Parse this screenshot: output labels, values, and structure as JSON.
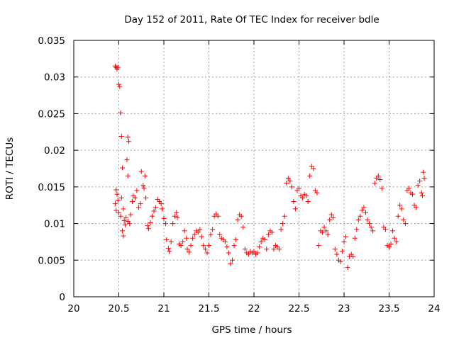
{
  "chart_data": {
    "type": "scatter",
    "title": "Day 152 of 2011, Rate Of TEC Index for receiver bdle",
    "xlabel": "GPS time / hours",
    "ylabel": "ROTI / TECUs",
    "xlim": [
      20,
      24
    ],
    "ylim": [
      0,
      0.035
    ],
    "grid": true,
    "marker": "+",
    "color": "#ff0000",
    "xticks": [
      "20",
      "20.5",
      "21",
      "21.5",
      "22",
      "22.5",
      "23",
      "23.5",
      "24"
    ],
    "yticks": [
      "0",
      "0.005",
      "0.01",
      "0.015",
      "0.02",
      "0.025",
      "0.03",
      "0.035"
    ],
    "series": [
      {
        "name": "ROTI",
        "points": [
          [
            20.46,
            0.0315
          ],
          [
            20.47,
            0.0313
          ],
          [
            20.48,
            0.0311
          ],
          [
            20.49,
            0.0313
          ],
          [
            20.5,
            0.029
          ],
          [
            20.51,
            0.0287
          ],
          [
            20.52,
            0.0251
          ],
          [
            20.53,
            0.0219
          ],
          [
            20.6,
            0.0218
          ],
          [
            20.61,
            0.0212
          ],
          [
            20.59,
            0.0187
          ],
          [
            20.54,
            0.0176
          ],
          [
            20.6,
            0.0165
          ],
          [
            20.47,
            0.0146
          ],
          [
            20.48,
            0.014
          ],
          [
            20.49,
            0.0132
          ],
          [
            20.46,
            0.0127
          ],
          [
            20.47,
            0.0118
          ],
          [
            20.5,
            0.0115
          ],
          [
            20.52,
            0.011
          ],
          [
            20.53,
            0.0135
          ],
          [
            20.55,
            0.012
          ],
          [
            20.56,
            0.0104
          ],
          [
            20.57,
            0.0098
          ],
          [
            20.58,
            0.0108
          ],
          [
            20.6,
            0.0103
          ],
          [
            20.62,
            0.01
          ],
          [
            20.63,
            0.0112
          ],
          [
            20.54,
            0.009
          ],
          [
            20.55,
            0.0083
          ],
          [
            20.65,
            0.013
          ],
          [
            20.66,
            0.0138
          ],
          [
            20.68,
            0.0135
          ],
          [
            20.7,
            0.0145
          ],
          [
            20.72,
            0.0122
          ],
          [
            20.74,
            0.0127
          ],
          [
            20.75,
            0.0171
          ],
          [
            20.77,
            0.0152
          ],
          [
            20.78,
            0.0148
          ],
          [
            20.79,
            0.0165
          ],
          [
            20.8,
            0.0135
          ],
          [
            20.82,
            0.0097
          ],
          [
            20.83,
            0.0093
          ],
          [
            20.85,
            0.0101
          ],
          [
            20.87,
            0.011
          ],
          [
            20.89,
            0.0117
          ],
          [
            20.91,
            0.0122
          ],
          [
            20.93,
            0.0133
          ],
          [
            20.95,
            0.013
          ],
          [
            20.97,
            0.0127
          ],
          [
            20.98,
            0.012
          ],
          [
            21.0,
            0.0107
          ],
          [
            21.02,
            0.01
          ],
          [
            21.03,
            0.0078
          ],
          [
            21.05,
            0.0066
          ],
          [
            21.06,
            0.0062
          ],
          [
            21.08,
            0.0075
          ],
          [
            21.1,
            0.01
          ],
          [
            21.12,
            0.011
          ],
          [
            21.14,
            0.0115
          ],
          [
            21.15,
            0.0108
          ],
          [
            21.17,
            0.0072
          ],
          [
            21.19,
            0.007
          ],
          [
            21.21,
            0.0075
          ],
          [
            21.23,
            0.009
          ],
          [
            21.25,
            0.008
          ],
          [
            21.26,
            0.0065
          ],
          [
            21.28,
            0.0061
          ],
          [
            21.3,
            0.007
          ],
          [
            21.32,
            0.008
          ],
          [
            21.34,
            0.0085
          ],
          [
            21.36,
            0.009
          ],
          [
            21.38,
            0.0088
          ],
          [
            21.4,
            0.0092
          ],
          [
            21.42,
            0.0082
          ],
          [
            21.44,
            0.007
          ],
          [
            21.46,
            0.0065
          ],
          [
            21.48,
            0.006
          ],
          [
            21.5,
            0.007
          ],
          [
            21.52,
            0.0085
          ],
          [
            21.54,
            0.0092
          ],
          [
            21.56,
            0.011
          ],
          [
            21.58,
            0.0113
          ],
          [
            21.6,
            0.011
          ],
          [
            21.62,
            0.0085
          ],
          [
            21.64,
            0.008
          ],
          [
            21.66,
            0.0078
          ],
          [
            21.68,
            0.0075
          ],
          [
            21.7,
            0.0068
          ],
          [
            21.72,
            0.006
          ],
          [
            21.74,
            0.0045
          ],
          [
            21.76,
            0.005
          ],
          [
            21.78,
            0.007
          ],
          [
            21.8,
            0.0078
          ],
          [
            21.82,
            0.0105
          ],
          [
            21.84,
            0.0112
          ],
          [
            21.86,
            0.011
          ],
          [
            21.88,
            0.0095
          ],
          [
            21.9,
            0.0065
          ],
          [
            21.92,
            0.006
          ],
          [
            21.94,
            0.0058
          ],
          [
            21.96,
            0.0062
          ],
          [
            21.98,
            0.006
          ],
          [
            22.0,
            0.0062
          ],
          [
            22.02,
            0.0058
          ],
          [
            22.04,
            0.006
          ],
          [
            22.06,
            0.0068
          ],
          [
            22.08,
            0.0075
          ],
          [
            22.1,
            0.008
          ],
          [
            22.12,
            0.0078
          ],
          [
            22.14,
            0.0065
          ],
          [
            22.16,
            0.0085
          ],
          [
            22.18,
            0.009
          ],
          [
            22.2,
            0.0088
          ],
          [
            22.22,
            0.0065
          ],
          [
            22.24,
            0.007
          ],
          [
            22.26,
            0.0068
          ],
          [
            22.28,
            0.0065
          ],
          [
            22.3,
            0.0092
          ],
          [
            22.32,
            0.01
          ],
          [
            22.34,
            0.011
          ],
          [
            22.36,
            0.0155
          ],
          [
            22.38,
            0.0162
          ],
          [
            22.4,
            0.0158
          ],
          [
            22.42,
            0.015
          ],
          [
            22.44,
            0.013
          ],
          [
            22.46,
            0.012
          ],
          [
            22.48,
            0.0145
          ],
          [
            22.5,
            0.0148
          ],
          [
            22.52,
            0.0138
          ],
          [
            22.54,
            0.0135
          ],
          [
            22.56,
            0.014
          ],
          [
            22.58,
            0.0138
          ],
          [
            22.6,
            0.013
          ],
          [
            22.62,
            0.0165
          ],
          [
            22.64,
            0.0178
          ],
          [
            22.66,
            0.0175
          ],
          [
            22.68,
            0.0145
          ],
          [
            22.7,
            0.0142
          ],
          [
            22.72,
            0.007
          ],
          [
            22.74,
            0.009
          ],
          [
            22.76,
            0.0088
          ],
          [
            22.78,
            0.0095
          ],
          [
            22.8,
            0.009
          ],
          [
            22.82,
            0.0085
          ],
          [
            22.84,
            0.0105
          ],
          [
            22.86,
            0.0112
          ],
          [
            22.88,
            0.0108
          ],
          [
            22.9,
            0.0065
          ],
          [
            22.92,
            0.0058
          ],
          [
            22.94,
            0.005
          ],
          [
            22.96,
            0.0048
          ],
          [
            22.98,
            0.0062
          ],
          [
            23.0,
            0.0075
          ],
          [
            23.02,
            0.0082
          ],
          [
            23.04,
            0.004
          ],
          [
            23.06,
            0.0055
          ],
          [
            23.08,
            0.0058
          ],
          [
            23.1,
            0.0055
          ],
          [
            23.12,
            0.008
          ],
          [
            23.14,
            0.0092
          ],
          [
            23.16,
            0.0105
          ],
          [
            23.18,
            0.011
          ],
          [
            23.2,
            0.0118
          ],
          [
            23.22,
            0.0122
          ],
          [
            23.24,
            0.0115
          ],
          [
            23.26,
            0.0105
          ],
          [
            23.28,
            0.01
          ],
          [
            23.3,
            0.0095
          ],
          [
            23.32,
            0.009
          ],
          [
            23.34,
            0.0155
          ],
          [
            23.36,
            0.0162
          ],
          [
            23.38,
            0.0165
          ],
          [
            23.4,
            0.016
          ],
          [
            23.42,
            0.0148
          ],
          [
            23.44,
            0.0095
          ],
          [
            23.46,
            0.0092
          ],
          [
            23.48,
            0.007
          ],
          [
            23.5,
            0.0068
          ],
          [
            23.52,
            0.0072
          ],
          [
            23.54,
            0.009
          ],
          [
            23.56,
            0.008
          ],
          [
            23.58,
            0.0075
          ],
          [
            23.6,
            0.011
          ],
          [
            23.62,
            0.0125
          ],
          [
            23.64,
            0.012
          ],
          [
            23.66,
            0.0105
          ],
          [
            23.68,
            0.01
          ],
          [
            23.7,
            0.0145
          ],
          [
            23.72,
            0.0148
          ],
          [
            23.74,
            0.0142
          ],
          [
            23.76,
            0.014
          ],
          [
            23.78,
            0.0125
          ],
          [
            23.8,
            0.0122
          ],
          [
            23.82,
            0.0152
          ],
          [
            23.84,
            0.0158
          ],
          [
            23.86,
            0.0142
          ],
          [
            23.88,
            0.017
          ],
          [
            23.89,
            0.0162
          ],
          [
            23.87,
            0.0138
          ]
        ]
      }
    ]
  }
}
